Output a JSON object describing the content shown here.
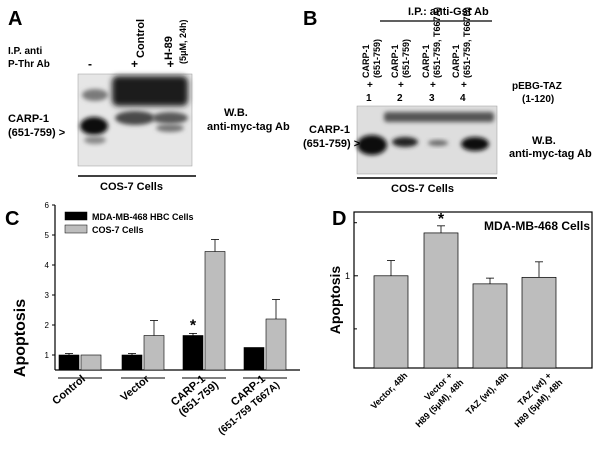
{
  "panelA": {
    "letter": "A",
    "ip_line1": "I.P. anti",
    "ip_line2": "P-Thr Ab",
    "col_control": "Control",
    "col_h89": "H-89",
    "col_h89_dose": "(5μM, 24h)",
    "signs": [
      "-",
      "+",
      "+"
    ],
    "band_label_1": "CARP-1",
    "band_label_2": "(651-759) >",
    "wb_line1": "W.B.",
    "wb_line2": "anti-myc-tag Ab",
    "cells": "COS-7 Cells"
  },
  "panelB": {
    "letter": "B",
    "ip": "I.P.: anti-Gst Ab",
    "lanes": [
      {
        "line1": "CARP-1",
        "line2": "(651-759)",
        "sign": "+",
        "num": "1"
      },
      {
        "line1": "CARP-1",
        "line2": "(651-759)",
        "sign": "+",
        "num": "2"
      },
      {
        "line1": "CARP-1",
        "line2": "(651-759, T667A)",
        "sign": "+",
        "num": "3"
      },
      {
        "line1": "CARP-1",
        "line2": "(651-759, T667D)",
        "sign": "+",
        "num": "4"
      }
    ],
    "construct_1": "pEBG-TAZ",
    "construct_2": "(1-120)",
    "band_label_1": "CARP-1",
    "band_label_2": "(651-759) >",
    "wb_line1": "W.B.",
    "wb_line2": "anti-myc-tag Ab",
    "cells": "COS-7 Cells"
  },
  "panelC": {
    "letter": "C",
    "chart_data": {
      "type": "bar",
      "categories": [
        "Control",
        "Vector",
        "CARP-1 (651-759)",
        "CARP-1 (651-759 T667A)"
      ],
      "series": [
        {
          "name": "MDA-MB-468 HBC Cells",
          "color": "#000000",
          "values": [
            1.0,
            1.0,
            1.65,
            1.25
          ],
          "errors": [
            0.05,
            0.05,
            0.07,
            0.0
          ]
        },
        {
          "name": "COS-7 Cells",
          "color": "#bdbdbd",
          "values": [
            1.0,
            1.65,
            4.45,
            2.2
          ],
          "errors": [
            0.0,
            0.5,
            0.4,
            0.65
          ]
        }
      ],
      "annotations": [
        {
          "text": "*",
          "category": 2,
          "series": 0
        }
      ],
      "ylabel": "Apoptosis",
      "ylim": [
        0.5,
        6
      ],
      "yticks": [
        "1",
        "2",
        "3",
        "4",
        "5",
        "6"
      ],
      "xlabels": [
        {
          "line1": "Control",
          "line2": ""
        },
        {
          "line1": "Vector",
          "line2": ""
        },
        {
          "line1": "CARP-1",
          "line2": "(651-759)"
        },
        {
          "line1": "CARP-1",
          "line2": "(651-759 T667A)"
        }
      ]
    }
  },
  "panelD": {
    "letter": "D",
    "chart_data": {
      "type": "bar",
      "title": "MDA-MB-468 Cells",
      "categories": [
        "Vector, 48h",
        "Vector + H89 (5μM), 48h",
        "TAZ (wt), 48h",
        "TAZ (wt) + H89 (5μM), 48h"
      ],
      "series": [
        {
          "color": "#bdbdbd",
          "values": [
            1.0,
            1.75,
            0.9,
            0.98
          ],
          "errors": [
            0.22,
            0.17,
            0.07,
            0.22
          ]
        }
      ],
      "annotations": [
        {
          "text": "*",
          "category": 1
        }
      ],
      "ylabel": "Apoptosis",
      "ylim": [
        0.3,
        2.3
      ],
      "yticks": [
        {
          "value": 1,
          "label": "1"
        }
      ],
      "log_scale": true,
      "xlabels": [
        {
          "line1": "Vector, 48h",
          "line2": ""
        },
        {
          "line1": "Vector +",
          "line2": "H89 (5μM), 48h"
        },
        {
          "line1": "TAZ (wt), 48h",
          "line2": ""
        },
        {
          "line1": "TAZ (wt) +",
          "line2": "H89 (5μM), 48h"
        }
      ]
    }
  }
}
